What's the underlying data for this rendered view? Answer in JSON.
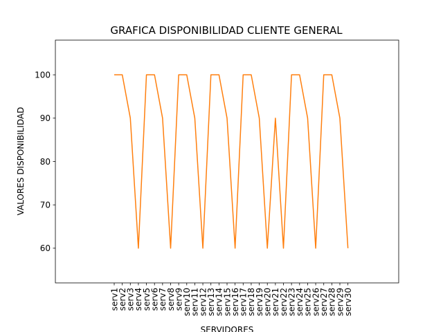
{
  "chart_data": {
    "type": "line",
    "title": "GRAFICA DISPONIBILIDAD CLIENTE GENERAL",
    "xlabel": "SERVIDORES",
    "ylabel": "VALORES DISPONIBILIDAD",
    "categories": [
      "serv1",
      "serv2",
      "serv3",
      "serv4",
      "serv5",
      "serv6",
      "serv7",
      "serv8",
      "serv9",
      "serv10",
      "serv11",
      "serv12",
      "serv13",
      "serv14",
      "serv15",
      "serv16",
      "serv17",
      "serv18",
      "serv19",
      "serv20",
      "serv21",
      "serv22",
      "serv23",
      "serv24",
      "serv25",
      "serv26",
      "serv27",
      "serv28",
      "serv29",
      "serv30"
    ],
    "series": [
      {
        "color": "#ff7f0e",
        "values": [
          100,
          100,
          90,
          60,
          100,
          100,
          90,
          60,
          100,
          100,
          90,
          60,
          100,
          100,
          90,
          60,
          100,
          100,
          90,
          60,
          90,
          60,
          100,
          100,
          90,
          60,
          100,
          100,
          90,
          60
        ]
      }
    ],
    "ylim": [
      52,
      108
    ],
    "yticks": [
      60,
      70,
      80,
      90,
      100
    ],
    "grid": false,
    "legend": "none"
  }
}
